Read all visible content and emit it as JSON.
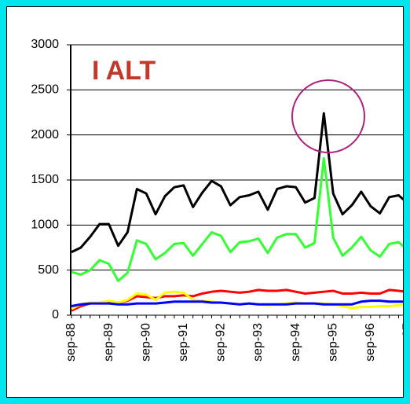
{
  "chart_data": {
    "type": "line",
    "title": "I ALT",
    "categories": [
      "sep-88",
      null,
      null,
      null,
      "sep-89",
      null,
      null,
      null,
      "sep-90",
      null,
      null,
      null,
      "sep-91",
      null,
      null,
      null,
      "sep-92",
      null,
      null,
      null,
      "sep-93",
      null,
      null,
      null,
      "sep-94",
      null,
      null,
      null,
      "sep-95",
      null,
      null,
      null,
      "sep-96",
      null,
      null,
      null,
      "sep-97"
    ],
    "series": [
      {
        "color": "#000000",
        "values": [
          700,
          750,
          870,
          1010,
          1010,
          770,
          920,
          1400,
          1350,
          1120,
          1320,
          1420,
          1440,
          1200,
          1360,
          1490,
          1430,
          1220,
          1310,
          1330,
          1370,
          1170,
          1400,
          1430,
          1420,
          1250,
          1300,
          2240,
          1350,
          1120,
          1220,
          1370,
          1210,
          1130,
          1310,
          1330,
          1240
        ]
      },
      {
        "color": "#33ff33",
        "values": [
          480,
          450,
          500,
          610,
          570,
          380,
          470,
          830,
          790,
          620,
          690,
          790,
          800,
          660,
          790,
          920,
          880,
          700,
          810,
          820,
          850,
          690,
          860,
          900,
          900,
          750,
          800,
          1740,
          860,
          660,
          750,
          870,
          720,
          650,
          790,
          810,
          720
        ]
      },
      {
        "color": "#ff0000",
        "values": [
          50,
          100,
          130,
          140,
          150,
          140,
          160,
          210,
          200,
          190,
          210,
          210,
          220,
          210,
          240,
          260,
          270,
          260,
          250,
          260,
          280,
          270,
          270,
          280,
          260,
          240,
          250,
          260,
          270,
          240,
          240,
          250,
          240,
          240,
          280,
          270,
          260
        ]
      },
      {
        "color": "#ffff00",
        "values": [
          70,
          120,
          140,
          140,
          160,
          140,
          170,
          240,
          230,
          170,
          250,
          260,
          250,
          170,
          160,
          150,
          140,
          130,
          120,
          130,
          120,
          110,
          120,
          130,
          140,
          130,
          130,
          130,
          120,
          100,
          80,
          90,
          90,
          100,
          100,
          110,
          120
        ]
      },
      {
        "color": "#0000ff",
        "values": [
          100,
          120,
          130,
          130,
          130,
          120,
          120,
          130,
          130,
          130,
          140,
          150,
          150,
          150,
          150,
          140,
          140,
          130,
          120,
          130,
          120,
          120,
          120,
          120,
          130,
          130,
          130,
          120,
          120,
          120,
          120,
          150,
          160,
          160,
          150,
          150,
          150
        ]
      }
    ],
    "ylim": [
      0,
      3000
    ],
    "yticks": [
      0,
      500,
      1000,
      1500,
      2000,
      2500,
      3000
    ],
    "grid": true
  }
}
